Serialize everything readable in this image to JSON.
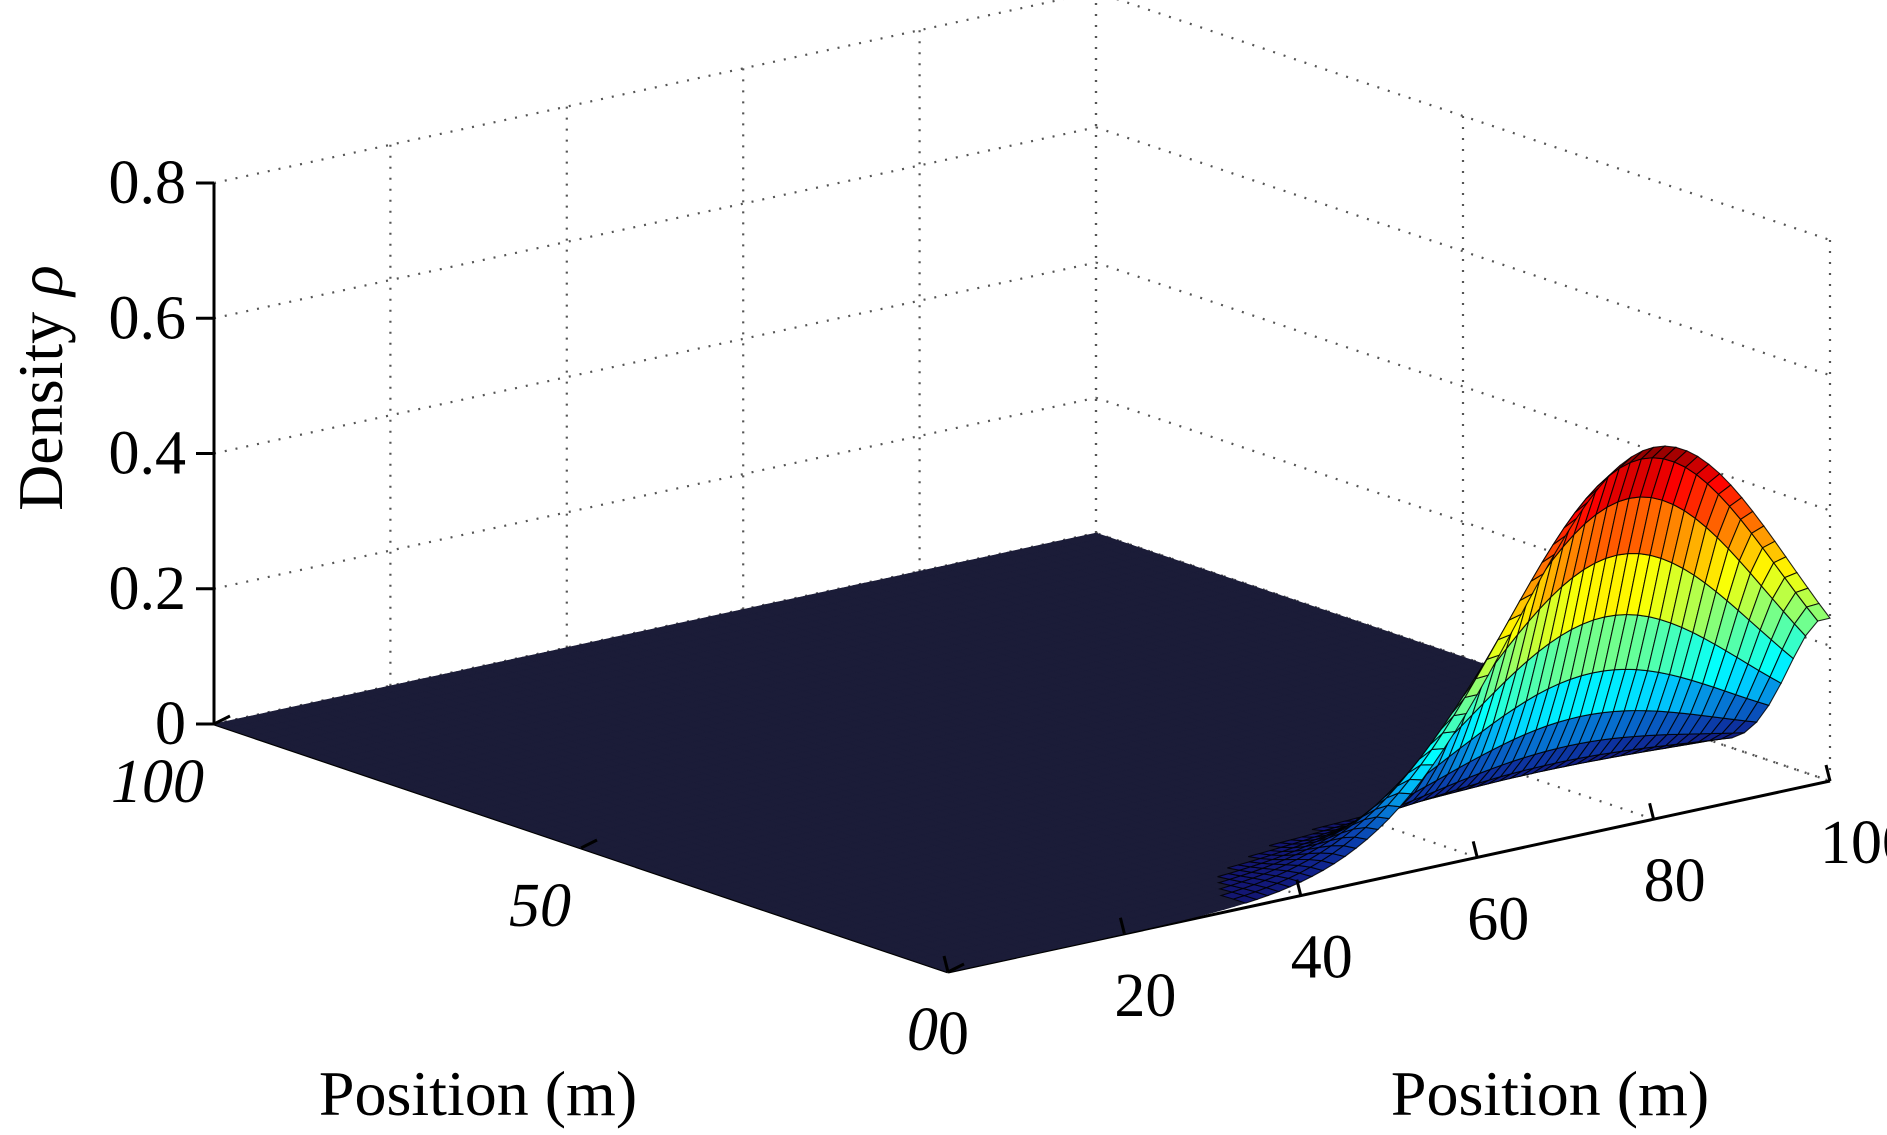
{
  "chart_data": {
    "type": "surface",
    "xlabel": "Position (m)",
    "ylabel": "Position (m)",
    "zlabel": "Density",
    "zlabel_symbol": "ρ",
    "x_range": [
      0,
      100
    ],
    "y_range": [
      0,
      100
    ],
    "z_range": [
      0,
      0.8
    ],
    "x_ticks": [
      "0",
      "20",
      "40",
      "60",
      "80",
      "100"
    ],
    "y_ticks": [
      "0",
      "50",
      "100"
    ],
    "z_ticks": [
      "0",
      "0.2",
      "0.4",
      "0.6",
      "0.8"
    ],
    "grid": true,
    "colormap": "jet",
    "surface": {
      "shape": "gaussian-like peak",
      "peak_value": 0.55,
      "peak_x": 80,
      "peak_y": 0,
      "spread_x": 22,
      "spread_y": 8,
      "baseline": 0
    },
    "colors": {
      "floor": "#1b1c38",
      "mesh": "#000000"
    }
  }
}
